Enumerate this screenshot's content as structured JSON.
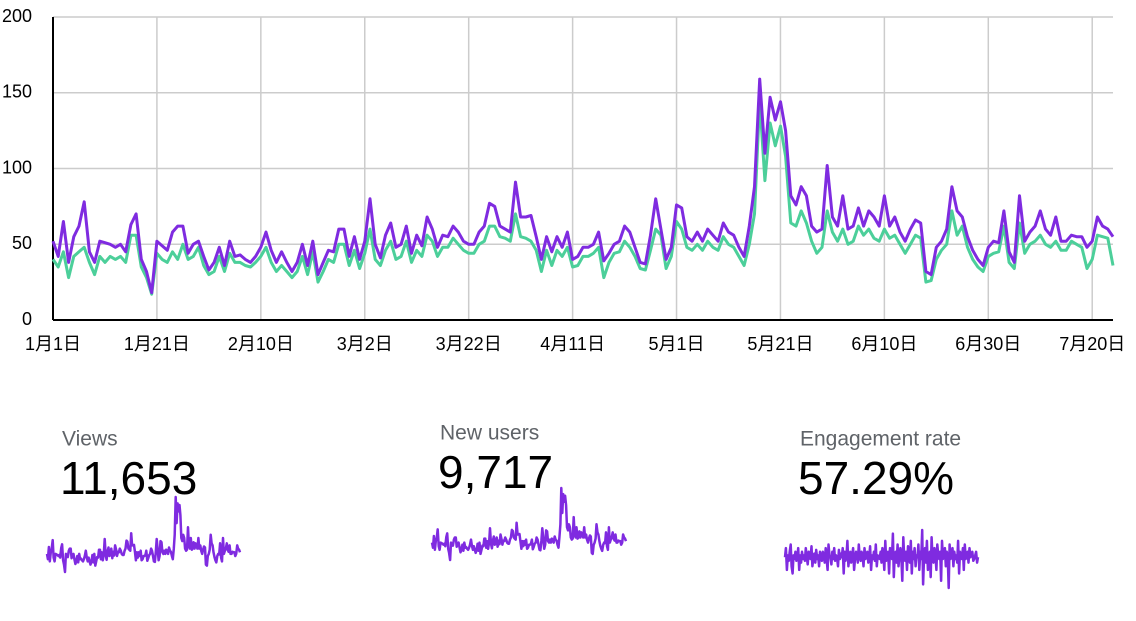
{
  "chart_data": {
    "type": "line",
    "categories": [
      "1月1日",
      null,
      null,
      null,
      null,
      null,
      null,
      null,
      null,
      null,
      null,
      null,
      null,
      null,
      null,
      null,
      null,
      null,
      null,
      null,
      "1月21日",
      null,
      null,
      null,
      null,
      null,
      null,
      null,
      null,
      null,
      null,
      null,
      null,
      null,
      null,
      null,
      null,
      null,
      null,
      null,
      "2月10日",
      null,
      null,
      null,
      null,
      null,
      null,
      null,
      null,
      null,
      null,
      null,
      null,
      null,
      null,
      null,
      null,
      null,
      null,
      null,
      "3月2日",
      null,
      null,
      null,
      null,
      null,
      null,
      null,
      null,
      null,
      null,
      null,
      null,
      null,
      null,
      null,
      null,
      null,
      null,
      null,
      "3月22日",
      null,
      null,
      null,
      null,
      null,
      null,
      null,
      null,
      null,
      null,
      null,
      null,
      null,
      null,
      null,
      null,
      null,
      null,
      null,
      "4月11日",
      null,
      null,
      null,
      null,
      null,
      null,
      null,
      null,
      null,
      null,
      null,
      null,
      null,
      null,
      null,
      null,
      null,
      null,
      null,
      "5月1日",
      null,
      null,
      null,
      null,
      null,
      null,
      null,
      null,
      null,
      null,
      null,
      null,
      null,
      null,
      null,
      null,
      null,
      null,
      null,
      "5月21日",
      null,
      null,
      null,
      null,
      null,
      null,
      null,
      null,
      null,
      null,
      null,
      null,
      null,
      null,
      null,
      null,
      null,
      null,
      null,
      "6月10日",
      null,
      null,
      null,
      null,
      null,
      null,
      null,
      null,
      null,
      null,
      null,
      null,
      null,
      null,
      null,
      null,
      null,
      null,
      null,
      "6月30日",
      null,
      null,
      null,
      null,
      null,
      null,
      null,
      null,
      null,
      null,
      null,
      null,
      null,
      null,
      null,
      null,
      null,
      null,
      null,
      "7月20日",
      null,
      null,
      null,
      null
    ],
    "series": [
      {
        "color": "#7f2be0",
        "values": [
          52,
          42,
          65,
          38,
          55,
          62,
          78,
          45,
          38,
          52,
          51,
          50,
          48,
          50,
          45,
          63,
          70,
          40,
          32,
          18,
          52,
          49,
          46,
          58,
          62,
          62,
          44,
          50,
          52,
          42,
          33,
          38,
          48,
          36,
          52,
          42,
          43,
          40,
          38,
          42,
          48,
          58,
          46,
          38,
          45,
          38,
          32,
          38,
          50,
          36,
          52,
          30,
          38,
          46,
          45,
          60,
          60,
          42,
          55,
          40,
          52,
          80,
          50,
          41,
          56,
          64,
          48,
          50,
          62,
          44,
          56,
          49,
          68,
          60,
          48,
          56,
          55,
          62,
          58,
          52,
          50,
          50,
          58,
          62,
          77,
          75,
          62,
          60,
          58,
          91,
          68,
          68,
          69,
          55,
          40,
          55,
          45,
          55,
          48,
          58,
          40,
          42,
          48,
          48,
          50,
          58,
          39,
          44,
          50,
          52,
          62,
          58,
          48,
          38,
          37,
          56,
          80,
          60,
          40,
          48,
          76,
          74,
          55,
          52,
          58,
          52,
          60,
          56,
          52,
          64,
          58,
          56,
          48,
          42,
          62,
          88,
          159,
          110,
          147,
          132,
          144,
          125,
          82,
          76,
          88,
          82,
          62,
          58,
          60,
          102,
          68,
          62,
          82,
          60,
          62,
          74,
          62,
          72,
          68,
          62,
          82,
          62,
          68,
          58,
          52,
          60,
          66,
          64,
          32,
          30,
          48,
          52,
          60,
          88,
          72,
          68,
          55,
          46,
          40,
          36,
          48,
          52,
          51,
          72,
          45,
          38,
          82,
          52,
          58,
          62,
          72,
          60,
          56,
          68,
          52,
          52,
          56,
          55,
          55,
          48,
          52,
          68,
          62,
          60,
          55
        ]
      },
      {
        "color": "#4ccf9a",
        "values": [
          40,
          35,
          45,
          28,
          42,
          45,
          48,
          38,
          30,
          42,
          38,
          42,
          40,
          42,
          38,
          56,
          56,
          35,
          28,
          17,
          44,
          40,
          38,
          45,
          40,
          50,
          40,
          42,
          48,
          36,
          30,
          32,
          42,
          32,
          44,
          38,
          38,
          36,
          35,
          38,
          42,
          48,
          38,
          32,
          36,
          32,
          28,
          32,
          42,
          30,
          45,
          25,
          32,
          40,
          38,
          50,
          50,
          36,
          46,
          34,
          44,
          60,
          40,
          36,
          46,
          52,
          40,
          42,
          52,
          38,
          46,
          42,
          56,
          52,
          42,
          48,
          48,
          54,
          50,
          46,
          44,
          44,
          50,
          52,
          62,
          62,
          55,
          54,
          52,
          70,
          55,
          54,
          52,
          46,
          32,
          46,
          36,
          46,
          42,
          48,
          35,
          36,
          42,
          42,
          44,
          48,
          28,
          38,
          44,
          45,
          52,
          48,
          42,
          34,
          33,
          46,
          60,
          56,
          34,
          42,
          65,
          60,
          48,
          46,
          50,
          46,
          52,
          48,
          46,
          55,
          50,
          48,
          42,
          36,
          50,
          70,
          145,
          92,
          130,
          115,
          128,
          108,
          64,
          62,
          72,
          64,
          52,
          44,
          48,
          72,
          58,
          52,
          60,
          50,
          52,
          62,
          56,
          60,
          54,
          52,
          60,
          54,
          56,
          50,
          44,
          50,
          56,
          54,
          25,
          26,
          40,
          46,
          50,
          72,
          56,
          62,
          48,
          40,
          35,
          32,
          42,
          44,
          45,
          62,
          38,
          34,
          64,
          44,
          50,
          52,
          56,
          50,
          48,
          52,
          46,
          46,
          52,
          50,
          48,
          34,
          40,
          56,
          55,
          54,
          36
        ]
      }
    ],
    "ylim": [
      0,
      200
    ],
    "yticks": [
      0,
      50,
      100,
      150,
      200
    ],
    "grid": true
  },
  "metrics": [
    {
      "label": "Views",
      "value": "11,653"
    },
    {
      "label": "New users",
      "value": "9,717"
    },
    {
      "label": "Engagement rate",
      "value": "57.29%",
      "color": "#7f2be0",
      "sparkline": [
        57,
        62,
        50,
        58,
        55,
        60,
        64,
        52,
        48,
        58,
        56,
        60,
        55,
        57,
        62,
        50,
        58,
        54,
        60,
        56,
        58,
        55,
        62,
        57,
        53,
        60,
        58,
        56,
        63,
        52,
        57,
        59,
        54,
        61,
        56,
        58,
        52,
        60,
        57,
        55,
        60,
        58,
        54,
        62,
        56,
        50,
        64,
        58,
        57,
        53,
        60,
        56,
        62,
        55,
        58,
        57,
        52,
        61,
        56,
        59,
        57,
        62,
        48,
        60,
        55,
        58,
        66,
        52,
        57,
        60,
        54,
        58,
        62,
        50,
        56,
        60,
        58,
        54,
        64,
        57,
        55,
        60,
        58,
        52,
        62,
        56,
        58,
        60,
        54,
        57,
        63,
        50,
        58,
        56,
        60,
        55,
        64,
        52,
        58,
        57,
        56,
        60,
        54,
        62,
        58,
        50,
        66,
        55,
        58,
        60,
        48,
        62,
        57,
        56,
        70,
        46,
        58,
        60,
        54,
        64,
        52,
        58,
        62,
        56,
        44,
        68,
        57,
        55,
        60,
        50,
        63,
        58,
        54,
        66,
        48,
        60,
        56,
        62,
        52,
        58,
        57,
        64,
        50,
        60,
        56,
        72,
        42,
        58,
        62,
        54,
        66,
        50,
        58,
        60,
        46,
        68,
        56,
        54,
        62,
        58,
        50,
        64,
        58,
        56,
        60,
        44,
        66,
        56,
        58,
        62,
        52,
        60,
        57,
        40,
        64,
        56,
        58,
        62,
        52,
        60,
        56,
        58,
        54,
        66,
        48,
        60,
        58,
        56,
        62,
        50,
        64,
        56,
        58,
        60,
        54,
        62,
        57,
        58,
        60,
        55,
        56,
        58,
        60,
        54,
        57
      ]
    }
  ]
}
